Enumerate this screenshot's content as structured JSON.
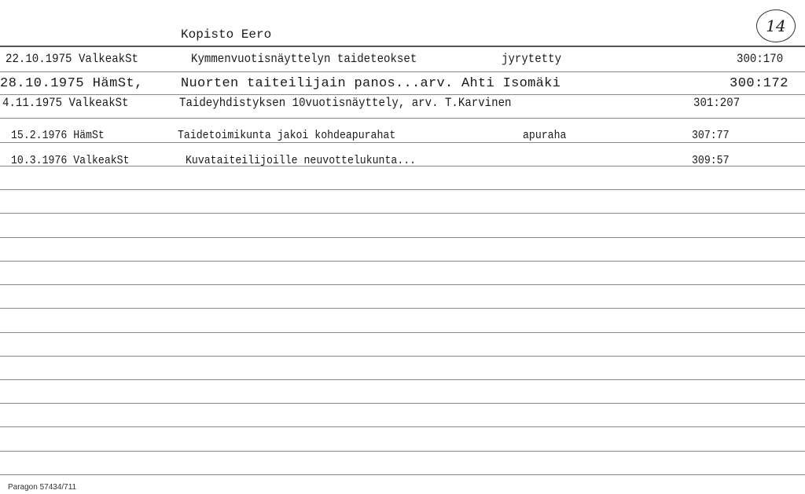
{
  "card": {
    "name": "Kopisto Eero",
    "card_number": "14",
    "entries": [
      {
        "date_source": "22.10.1975 ValkeakSt",
        "title": "Kymmenvuotisnäyttelyn taideteokset",
        "note": "jyrytetty",
        "ref": "300:170"
      },
      {
        "date_source": "28.10.1975 HämSt,",
        "title": "Nuorten taiteilijain panos...arv. Ahti Isomäki",
        "note": "",
        "ref": "300:172"
      },
      {
        "date_source": "4.11.1975 ValkeakSt",
        "title": "Taideyhdistyksen 10vuotisnäyttely, arv. T.Karvinen",
        "note": "",
        "ref": "301:207"
      },
      {
        "date_source": "15.2.1976 HämSt",
        "title": "Taidetoimikunta jakoi kohdeapurahat",
        "note": "apuraha",
        "ref": "307:77"
      },
      {
        "date_source": "10.3.1976 ValkeakSt",
        "title": "Kuvataiteilijoille neuvottelukunta...",
        "note": "",
        "ref": "309:57"
      }
    ],
    "footer": "Paragon 57434/711"
  }
}
